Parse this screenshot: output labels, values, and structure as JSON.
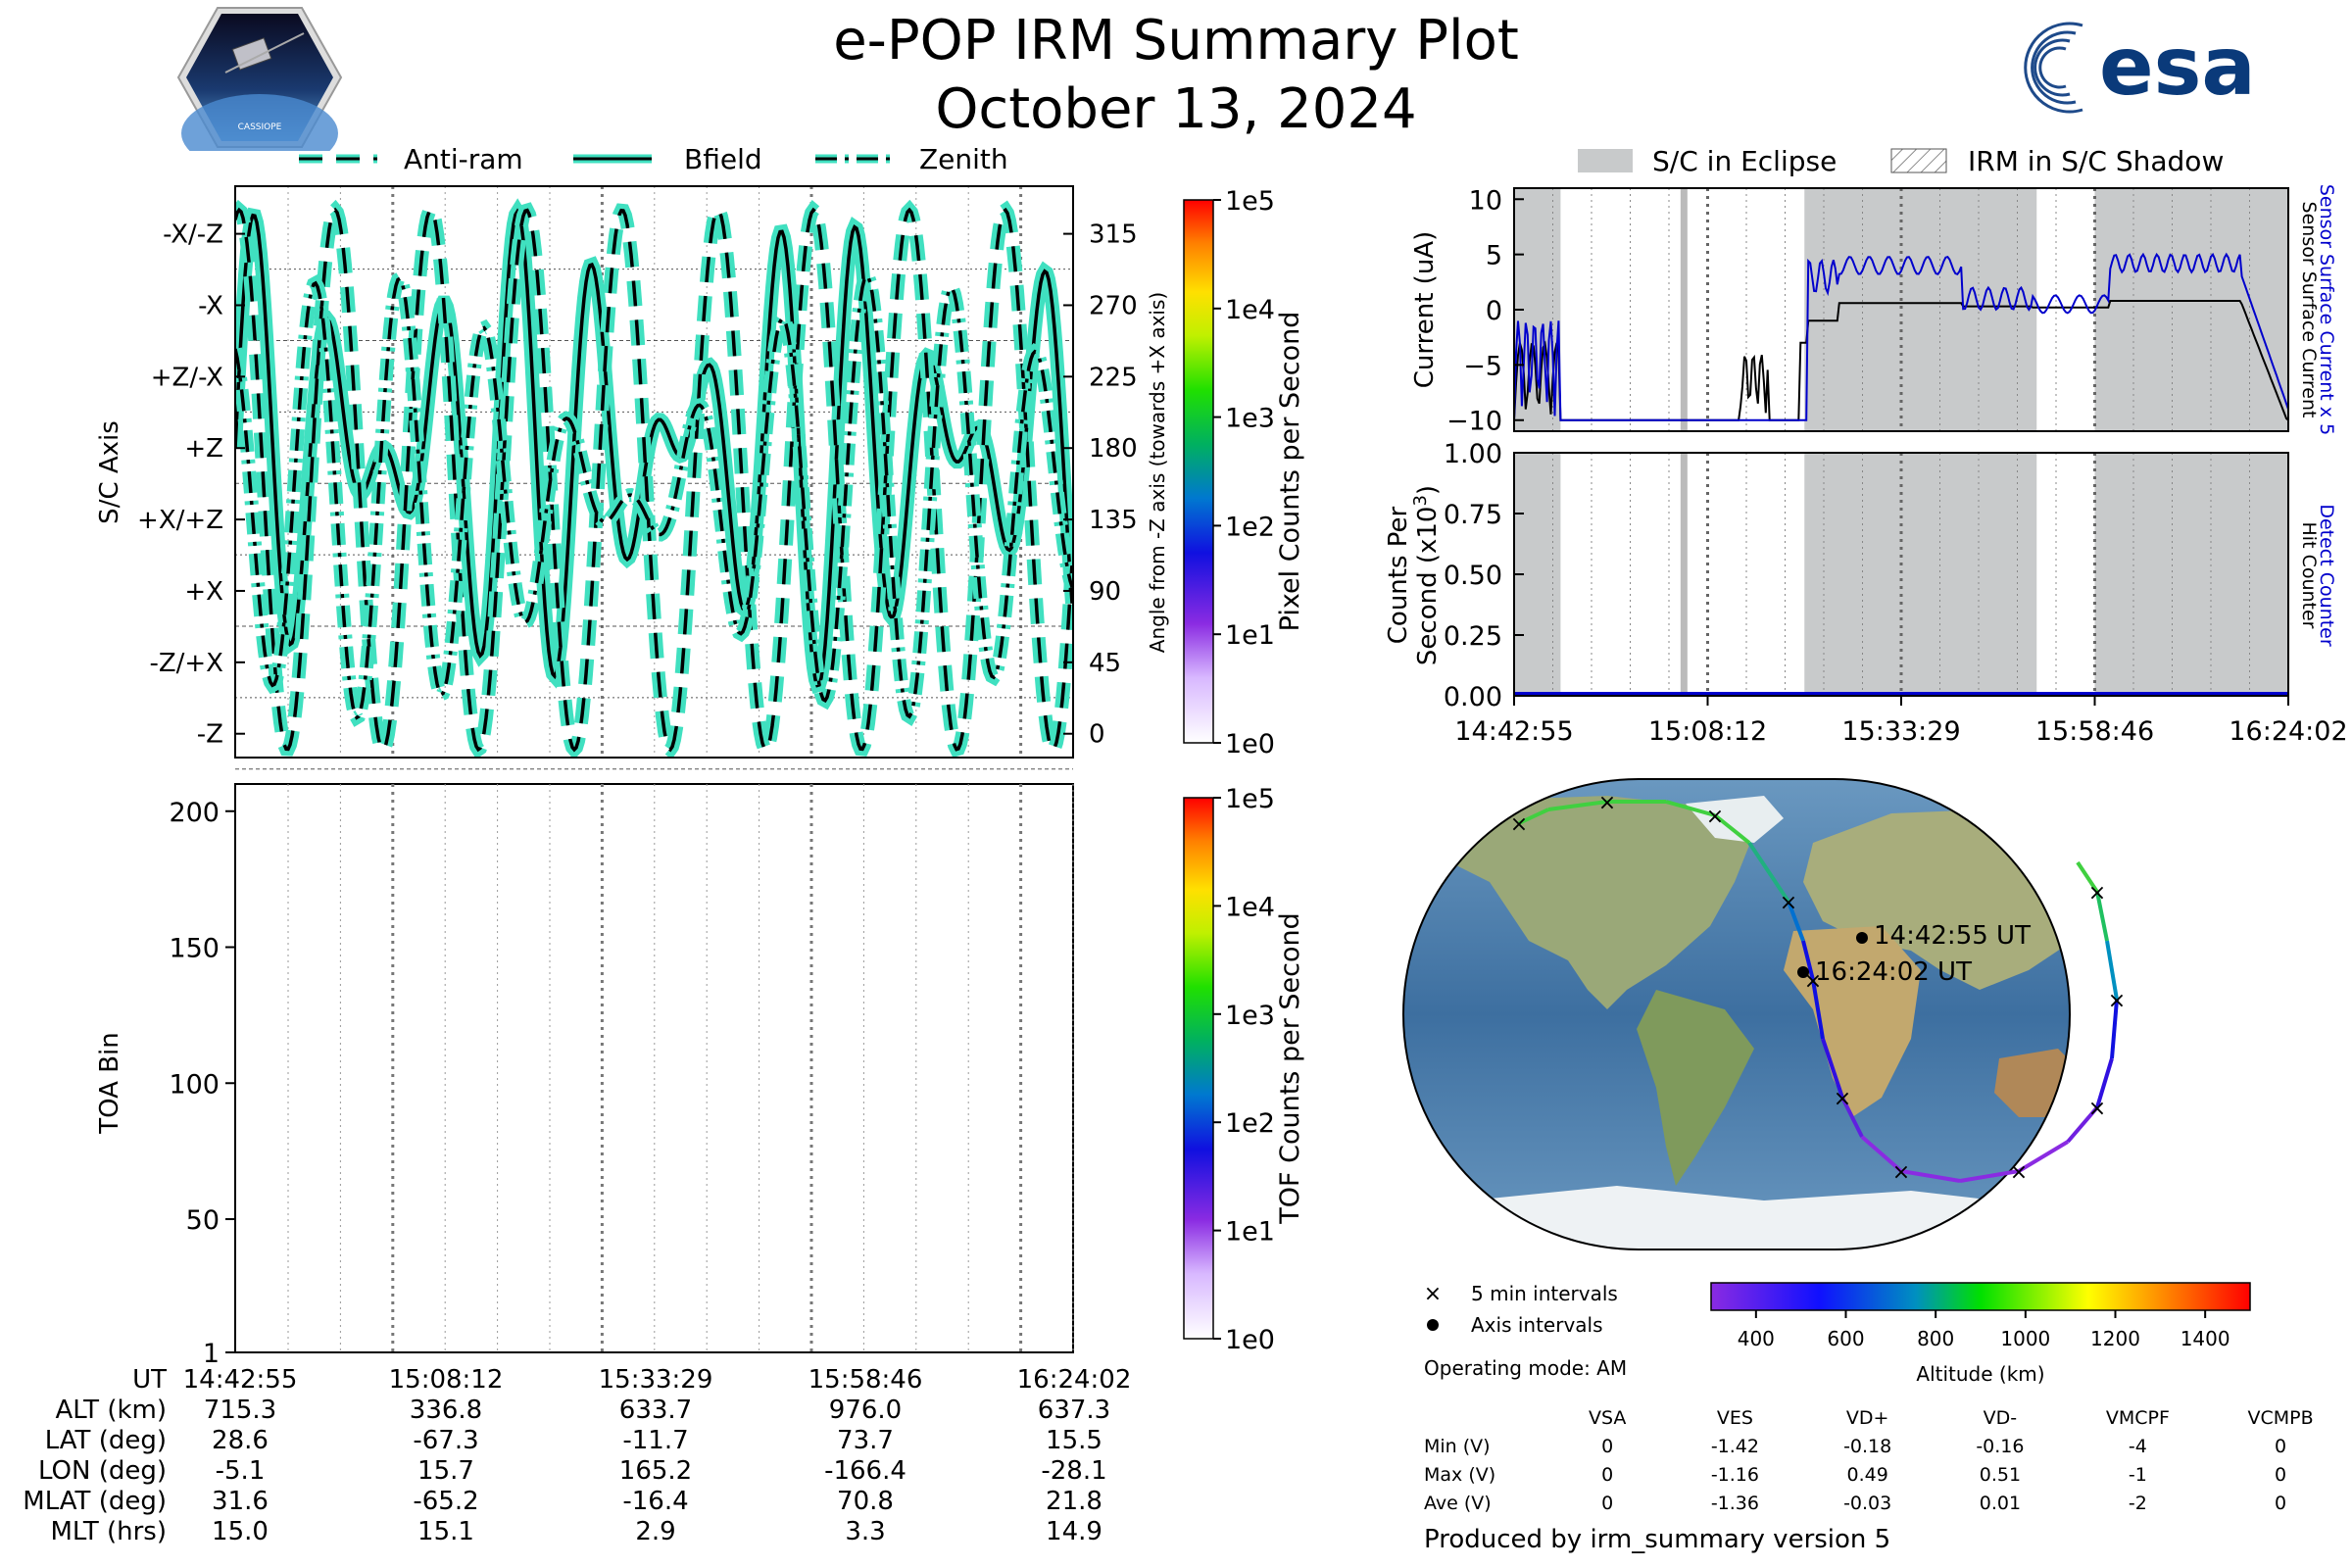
{
  "header": {
    "title": "e-POP IRM Summary Plot",
    "date": "October 13, 2024",
    "left_logo_text": "CASSIOPE",
    "right_logo_text": "esa"
  },
  "colors": {
    "trace_fill": "#40e0c0",
    "trace_edge": "#000000",
    "eclipse": "#c8cacb",
    "sensor_current": "#0000cc",
    "current_black": "#000000"
  },
  "chart_data": [
    {
      "id": "attitude",
      "type": "line",
      "title": "",
      "legend": [
        "Anti-ram",
        "Bfield",
        "Zenith"
      ],
      "legend_placement": "top",
      "ylabel_left": "S/C Axis",
      "ylabel_right": "Angle from -Z axis (towards +X axis)",
      "left_ticks": [
        "-Z",
        "-Z/+X",
        "+X",
        "+X/+Z",
        "+Z",
        "+Z/-X",
        "-X",
        "-X/-Z"
      ],
      "right_ticks": [
        "0",
        "45",
        "90",
        "135",
        "180",
        "225",
        "270",
        "315"
      ],
      "ylim": [
        -15,
        345
      ],
      "xlim": [
        "14:42:55",
        "16:24:02"
      ],
      "colorbar": {
        "label": "Pixel Counts per Second",
        "ticks": [
          "1e0",
          "1e1",
          "1e2",
          "1e3",
          "1e4",
          "1e5"
        ],
        "scale": "log"
      }
    },
    {
      "id": "toa",
      "type": "heatmap",
      "ylabel": "TOA Bin",
      "yticks": [
        "1",
        "50",
        "100",
        "150",
        "200"
      ],
      "ylim": [
        1,
        210
      ],
      "xlim": [
        "14:42:55",
        "16:24:02"
      ],
      "colorbar": {
        "label": "TOF Counts per Second",
        "ticks": [
          "1e0",
          "1e1",
          "1e2",
          "1e3",
          "1e4",
          "1e5"
        ],
        "scale": "log"
      }
    },
    {
      "id": "current",
      "type": "line",
      "ylabel": "Current (uA)",
      "yticks": [
        "−10",
        "−5",
        "0",
        "5",
        "10"
      ],
      "ylim": [
        -11,
        11
      ],
      "right_label_blue": "Sensor Surface Current x 5",
      "right_label_black": "Sensor Surface Current",
      "legend": [
        "S/C in Eclipse",
        "IRM in S/C Shadow"
      ],
      "legend_placement": "top"
    },
    {
      "id": "counts",
      "type": "line",
      "ylabel": "Counts Per Second (x10³)",
      "ylabel_line1": "Counts Per",
      "ylabel_line2": "Second (x10",
      "ylabel_sup": "3",
      "ylabel_close": ")",
      "yticks": [
        "0.00",
        "0.25",
        "0.50",
        "0.75",
        "1.00"
      ],
      "ylim": [
        0,
        1
      ],
      "right_label_blue": "Detect Counter",
      "right_label_black": "Hit Counter",
      "xticks": [
        "14:42:55",
        "15:08:12",
        "15:33:29",
        "15:58:46",
        "16:24:02"
      ]
    },
    {
      "id": "orbit_map",
      "type": "scatter",
      "annotations": [
        "14:42:55 UT",
        "16:24:02 UT"
      ],
      "legend": [
        "5 min intervals",
        "Axis intervals"
      ],
      "colorbar": {
        "label": "Altitude (km)",
        "ticks": [
          "400",
          "600",
          "800",
          "1000",
          "1200",
          "1400"
        ],
        "range": [
          300,
          1500
        ]
      }
    }
  ],
  "ephemeris": {
    "labels": [
      "UT",
      "ALT (km)",
      "LAT (deg)",
      "LON (deg)",
      "MLAT (deg)",
      "MLT (hrs)"
    ],
    "columns": [
      [
        "14:42:55",
        "715.3",
        "28.6",
        "-5.1",
        "31.6",
        "15.0"
      ],
      [
        "15:08:12",
        "336.8",
        "-67.3",
        "15.7",
        "-65.2",
        "15.1"
      ],
      [
        "15:33:29",
        "633.7",
        "-11.7",
        "165.2",
        "-16.4",
        "2.9"
      ],
      [
        "15:58:46",
        "976.0",
        "73.7",
        "-166.4",
        "70.8",
        "3.3"
      ],
      [
        "16:24:02",
        "637.3",
        "15.5",
        "-28.1",
        "21.8",
        "14.9"
      ]
    ]
  },
  "operating_mode": "Operating mode: AM",
  "voltages": {
    "headers": [
      "",
      "VSA",
      "VES",
      "VD+",
      "VD-",
      "VMCPF",
      "VCMPB"
    ],
    "rows": [
      [
        "Min (V)",
        "0",
        "-1.42",
        "-0.18",
        "-0.16",
        "-4",
        "0"
      ],
      [
        "Max (V)",
        "0",
        "-1.16",
        "0.49",
        "0.51",
        "-1",
        "0"
      ],
      [
        "Ave (V)",
        "0",
        "-1.36",
        "-0.03",
        "0.01",
        "-2",
        "0"
      ]
    ]
  },
  "footer": "Produced by irm_summary version 5"
}
